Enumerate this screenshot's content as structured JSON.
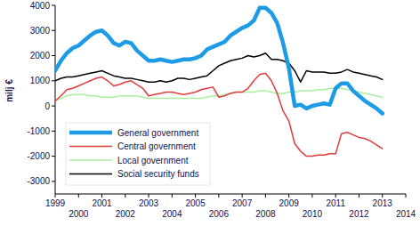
{
  "chart_data": {
    "type": "line",
    "y_label": "milj €",
    "x": [
      1999,
      1999.25,
      1999.5,
      1999.75,
      2000,
      2000.25,
      2000.5,
      2000.75,
      2001,
      2001.25,
      2001.5,
      2001.75,
      2002,
      2002.25,
      2002.5,
      2002.75,
      2003,
      2003.25,
      2003.5,
      2003.75,
      2004,
      2004.25,
      2004.5,
      2004.75,
      2005,
      2005.25,
      2005.5,
      2005.75,
      2006,
      2006.25,
      2006.5,
      2006.75,
      2007,
      2007.25,
      2007.5,
      2007.75,
      2008,
      2008.25,
      2008.5,
      2008.75,
      2009,
      2009.25,
      2009.5,
      2009.75,
      2010,
      2010.25,
      2010.5,
      2010.75,
      2011,
      2011.25,
      2011.5,
      2011.75,
      2012,
      2012.25,
      2012.5,
      2012.75,
      2013
    ],
    "series": [
      {
        "name": "General government",
        "color": "#1e9be6",
        "values": [
          1400,
          1800,
          2100,
          2300,
          2400,
          2600,
          2800,
          2950,
          3000,
          2800,
          2500,
          2400,
          2550,
          2500,
          2200,
          2000,
          1800,
          1800,
          1850,
          1800,
          1750,
          1800,
          1850,
          1850,
          1900,
          2000,
          2250,
          2350,
          2450,
          2550,
          2800,
          2950,
          3100,
          3200,
          3400,
          3900,
          3900,
          3700,
          3300,
          2500,
          1500,
          0,
          50,
          -100,
          0,
          50,
          100,
          50,
          700,
          900,
          900,
          600,
          400,
          200,
          50,
          -100,
          -300
        ]
      },
      {
        "name": "Central government",
        "color": "#e03c3c",
        "values": [
          200,
          400,
          650,
          700,
          800,
          900,
          1000,
          1100,
          1150,
          1000,
          800,
          850,
          950,
          1000,
          850,
          700,
          400,
          450,
          500,
          550,
          550,
          500,
          450,
          500,
          550,
          650,
          700,
          750,
          350,
          400,
          500,
          550,
          550,
          700,
          1000,
          1250,
          1300,
          1000,
          500,
          -200,
          -600,
          -1500,
          -1800,
          -2000,
          -2000,
          -1950,
          -1950,
          -1900,
          -1900,
          -1100,
          -1050,
          -1150,
          -1250,
          -1300,
          -1400,
          -1550,
          -1700
        ]
      },
      {
        "name": "Local government",
        "color": "#a8f0a0",
        "values": [
          200,
          300,
          400,
          450,
          450,
          450,
          400,
          400,
          350,
          350,
          350,
          400,
          400,
          400,
          400,
          350,
          300,
          300,
          300,
          300,
          300,
          300,
          300,
          300,
          300,
          300,
          350,
          400,
          400,
          450,
          500,
          550,
          550,
          550,
          550,
          600,
          600,
          550,
          500,
          500,
          550,
          550,
          600,
          600,
          600,
          650,
          650,
          700,
          700,
          700,
          650,
          600,
          550,
          500,
          450,
          400,
          350
        ]
      },
      {
        "name": "Social security funds",
        "color": "#000000",
        "values": [
          1000,
          1100,
          1150,
          1150,
          1200,
          1250,
          1300,
          1350,
          1400,
          1300,
          1200,
          1150,
          1100,
          1100,
          1050,
          1000,
          950,
          950,
          1000,
          950,
          1000,
          1100,
          1100,
          1050,
          1100,
          1150,
          1200,
          1400,
          1600,
          1700,
          1800,
          1850,
          1900,
          2000,
          1950,
          2000,
          2100,
          1850,
          1850,
          1800,
          1700,
          1400,
          950,
          1400,
          1350,
          1350,
          1350,
          1300,
          1300,
          1350,
          1450,
          1350,
          1300,
          1250,
          1200,
          1150,
          1050
        ]
      }
    ],
    "xlim": [
      1999,
      2014
    ],
    "xticks": [
      1999,
      2000,
      2001,
      2002,
      2003,
      2004,
      2005,
      2006,
      2007,
      2008,
      2009,
      2010,
      2011,
      2012,
      2013,
      2014
    ],
    "ylim": [
      -3500,
      4000
    ],
    "yticks": [
      -3000,
      -2000,
      -1000,
      0,
      1000,
      2000,
      3000,
      4000
    ],
    "grid": false,
    "legend": "lower left"
  }
}
